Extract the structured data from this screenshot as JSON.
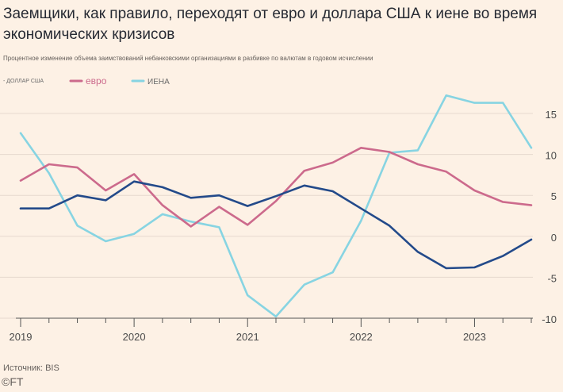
{
  "title": "Заемщики, как правило, переходят от евро и доллара США к иене во время экономических кризисов",
  "subtitle": "Процентное изменение объема заимствований небанковскими организациями в разбивке по валютам в годовом исчислении",
  "source": "Источник: BIS",
  "logo": "©FT",
  "chart_data": {
    "type": "line",
    "x": [
      "2019Q1",
      "2019Q2",
      "2019Q3",
      "2019Q4",
      "2020Q1",
      "2020Q2",
      "2020Q3",
      "2020Q4",
      "2021Q1",
      "2021Q2",
      "2021Q3",
      "2021Q4",
      "2022Q1",
      "2022Q2",
      "2022Q3",
      "2022Q4",
      "2023Q1",
      "2023Q2",
      "2023Q3"
    ],
    "x_tick_labels": [
      "2019",
      "2020",
      "2021",
      "2022",
      "2023"
    ],
    "ylim": [
      -10,
      17
    ],
    "y_ticks": [
      15,
      10,
      5,
      0,
      -5,
      -10
    ],
    "y_tick_labels": [
      "15",
      "10",
      "5",
      "0",
      "-5",
      "-10"
    ],
    "legend_position": "top-left",
    "series": [
      {
        "name": "ДОЛЛАР США",
        "label": "- ДОЛЛАР США",
        "color": "#234a8a",
        "values": [
          3.4,
          3.4,
          5.0,
          4.4,
          6.7,
          6.0,
          4.7,
          5.0,
          3.7,
          4.9,
          6.2,
          5.5,
          3.4,
          1.3,
          -1.9,
          -3.9,
          -3.8,
          -2.4,
          -0.4
        ]
      },
      {
        "name": "евро",
        "label": "евро",
        "color": "#cc6a8c",
        "values": [
          6.8,
          8.8,
          8.4,
          5.6,
          7.6,
          3.8,
          1.2,
          3.6,
          1.4,
          4.3,
          8.0,
          9.0,
          10.8,
          10.3,
          8.8,
          7.9,
          5.6,
          4.2,
          3.8
        ]
      },
      {
        "name": "ИЕНА",
        "label": "ИЕНА",
        "color": "#87d4e2",
        "values": [
          12.6,
          7.7,
          1.3,
          -0.6,
          0.3,
          2.7,
          1.8,
          1.1,
          -7.2,
          -9.8,
          -5.9,
          -4.4,
          1.9,
          10.2,
          10.5,
          17.2,
          16.3,
          16.3,
          10.8
        ]
      }
    ]
  }
}
